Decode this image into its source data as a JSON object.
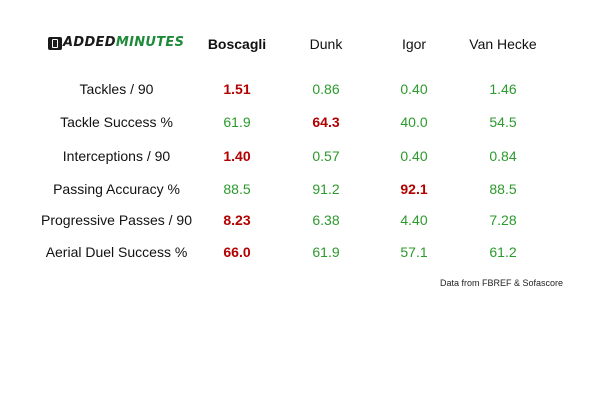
{
  "brand": {
    "part_a": "ADDED",
    "part_b": "MINUTES",
    "icon": "clock-badge-icon"
  },
  "players": [
    "Boscagli",
    "Dunk",
    "Igor",
    "Van Hecke"
  ],
  "rows": [
    {
      "label": "Tackles / 90",
      "values": [
        "1.51",
        "0.86",
        "0.40",
        "1.46"
      ],
      "best": 0
    },
    {
      "label": "Tackle Success %",
      "values": [
        "61.9",
        "64.3",
        "40.0",
        "54.5"
      ],
      "best": 1
    },
    {
      "label": "Interceptions / 90",
      "values": [
        "1.40",
        "0.57",
        "0.40",
        "0.84"
      ],
      "best": 0
    },
    {
      "label": "Passing Accuracy %",
      "values": [
        "88.5",
        "91.2",
        "92.1",
        "88.5"
      ],
      "best": 2
    },
    {
      "label": "Progressive Passes / 90",
      "values": [
        "8.23",
        "6.38",
        "4.40",
        "7.28"
      ],
      "best": 0
    },
    {
      "label": "Aerial Duel Success %",
      "values": [
        "66.0",
        "61.9",
        "57.1",
        "61.2"
      ],
      "best": 0
    }
  ],
  "source": "Data from FBREF & Sofascore",
  "colors": {
    "highlight": "#b30000",
    "value": "#2c9a2c",
    "brand_green": "#1f8a3a"
  }
}
